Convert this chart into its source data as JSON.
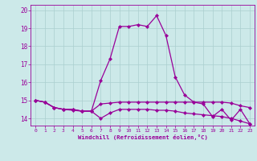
{
  "xlabel": "Windchill (Refroidissement éolien,°C)",
  "background_color": "#cce9e9",
  "grid_color": "#aacfcf",
  "line_color": "#990099",
  "xlim": [
    -0.5,
    23.5
  ],
  "ylim": [
    13.6,
    20.3
  ],
  "yticks": [
    14,
    15,
    16,
    17,
    18,
    19,
    20
  ],
  "xticks": [
    0,
    1,
    2,
    3,
    4,
    5,
    6,
    7,
    8,
    9,
    10,
    11,
    12,
    13,
    14,
    15,
    16,
    17,
    18,
    19,
    20,
    21,
    22,
    23
  ],
  "hours": [
    0,
    1,
    2,
    3,
    4,
    5,
    6,
    7,
    8,
    9,
    10,
    11,
    12,
    13,
    14,
    15,
    16,
    17,
    18,
    19,
    20,
    21,
    22,
    23
  ],
  "curve_main": [
    15.0,
    14.9,
    14.6,
    14.5,
    14.5,
    14.4,
    14.4,
    16.1,
    17.3,
    19.1,
    19.1,
    19.2,
    19.1,
    19.7,
    18.6,
    16.3,
    15.3,
    14.9,
    14.8,
    14.1,
    14.5,
    13.9,
    14.5,
    13.7
  ],
  "curve_upper": [
    15.0,
    14.9,
    14.6,
    14.5,
    14.5,
    14.4,
    14.4,
    14.8,
    14.85,
    14.9,
    14.9,
    14.9,
    14.9,
    14.9,
    14.9,
    14.9,
    14.9,
    14.9,
    14.9,
    14.9,
    14.9,
    14.85,
    14.7,
    14.6
  ],
  "curve_lower": [
    15.0,
    14.9,
    14.6,
    14.5,
    14.45,
    14.4,
    14.4,
    14.0,
    14.3,
    14.5,
    14.5,
    14.5,
    14.5,
    14.45,
    14.45,
    14.4,
    14.3,
    14.25,
    14.2,
    14.15,
    14.1,
    14.0,
    13.85,
    13.7
  ]
}
